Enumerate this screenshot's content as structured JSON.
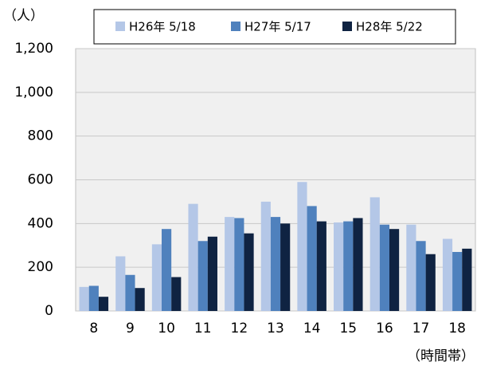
{
  "chart_data": {
    "type": "bar",
    "y_label": "（人）",
    "x_label": "（時間帯）",
    "categories": [
      "8",
      "9",
      "10",
      "11",
      "12",
      "13",
      "14",
      "15",
      "16",
      "17",
      "18"
    ],
    "series": [
      {
        "name": "H26年 5/18",
        "color": "#b4c7e7",
        "values": [
          110,
          250,
          305,
          490,
          430,
          500,
          590,
          405,
          520,
          395,
          330
        ]
      },
      {
        "name": "H27年 5/17",
        "color": "#4f81bd",
        "values": [
          115,
          165,
          375,
          320,
          425,
          430,
          480,
          410,
          395,
          320,
          270
        ]
      },
      {
        "name": "H28年 5/22",
        "color": "#0f2342",
        "values": [
          65,
          105,
          155,
          340,
          355,
          400,
          410,
          425,
          375,
          260,
          285
        ]
      }
    ],
    "ylim": [
      0,
      1200
    ],
    "yticks": [
      0,
      200,
      400,
      600,
      800,
      {
        "value": 1000,
        "label": "1,000"
      },
      {
        "value": 1200,
        "label": "1,200"
      }
    ],
    "grid": true,
    "legend": "top"
  }
}
